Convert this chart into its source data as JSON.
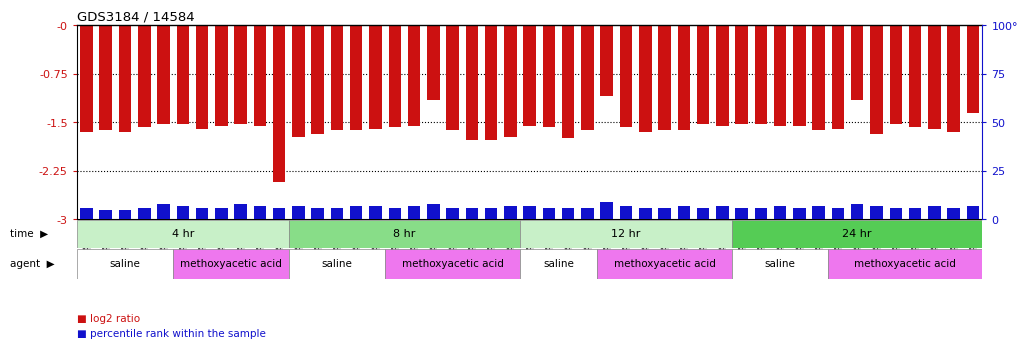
{
  "title": "GDS3184 / 14584",
  "samples": [
    "GSM253537",
    "GSM253539",
    "GSM253562",
    "GSM253564",
    "GSM253569",
    "GSM253533",
    "GSM253538",
    "GSM253540",
    "GSM253541",
    "GSM253542",
    "GSM253568",
    "GSM253530",
    "GSM253543",
    "GSM253544",
    "GSM253555",
    "GSM253556",
    "GSM253565",
    "GSM253534",
    "GSM253545",
    "GSM253546",
    "GSM253557",
    "GSM253558",
    "GSM253559",
    "GSM253531",
    "GSM253547",
    "GSM253548",
    "GSM253566",
    "GSM253570",
    "GSM253571",
    "GSM253535",
    "GSM253550",
    "GSM253560",
    "GSM253561",
    "GSM253563",
    "GSM253572",
    "GSM253532",
    "GSM253551",
    "GSM253552",
    "GSM253567",
    "GSM253573",
    "GSM253574",
    "GSM253536",
    "GSM253549",
    "GSM253553",
    "GSM253554",
    "GSM253575",
    "GSM253576"
  ],
  "log2_ratio": [
    -1.65,
    -1.62,
    -1.65,
    -1.58,
    -1.52,
    -1.52,
    -1.6,
    -1.55,
    -1.52,
    -1.55,
    -2.42,
    -1.72,
    -1.68,
    -1.62,
    -1.62,
    -1.6,
    -1.57,
    -1.55,
    -1.15,
    -1.62,
    -1.78,
    -1.78,
    -1.73,
    -1.55,
    -1.58,
    -1.75,
    -1.62,
    -1.1,
    -1.58,
    -1.65,
    -1.62,
    -1.62,
    -1.52,
    -1.55,
    -1.52,
    -1.52,
    -1.55,
    -1.55,
    -1.62,
    -1.6,
    -1.15,
    -1.68,
    -1.52,
    -1.58,
    -1.6,
    -1.65,
    -1.35
  ],
  "percentile": [
    6,
    5,
    5,
    6,
    8,
    7,
    6,
    6,
    8,
    7,
    6,
    7,
    6,
    6,
    7,
    7,
    6,
    7,
    8,
    6,
    6,
    6,
    7,
    7,
    6,
    6,
    6,
    9,
    7,
    6,
    6,
    7,
    6,
    7,
    6,
    6,
    7,
    6,
    7,
    6,
    8,
    7,
    6,
    6,
    7,
    6,
    7
  ],
  "time_groups": [
    {
      "label": "4 hr",
      "start": 0,
      "end": 11,
      "color": "#c8f0c8"
    },
    {
      "label": "8 hr",
      "start": 11,
      "end": 23,
      "color": "#88dd88"
    },
    {
      "label": "12 hr",
      "start": 23,
      "end": 34,
      "color": "#c8f0c8"
    },
    {
      "label": "24 hr",
      "start": 34,
      "end": 47,
      "color": "#55cc55"
    }
  ],
  "agent_groups": [
    {
      "label": "saline",
      "start": 0,
      "end": 5,
      "color": "#ffffff"
    },
    {
      "label": "methoxyacetic acid",
      "start": 5,
      "end": 11,
      "color": "#ee77ee"
    },
    {
      "label": "saline",
      "start": 11,
      "end": 16,
      "color": "#ffffff"
    },
    {
      "label": "methoxyacetic acid",
      "start": 16,
      "end": 23,
      "color": "#ee77ee"
    },
    {
      "label": "saline",
      "start": 23,
      "end": 27,
      "color": "#ffffff"
    },
    {
      "label": "methoxyacetic acid",
      "start": 27,
      "end": 34,
      "color": "#ee77ee"
    },
    {
      "label": "saline",
      "start": 34,
      "end": 39,
      "color": "#ffffff"
    },
    {
      "label": "methoxyacetic acid",
      "start": 39,
      "end": 47,
      "color": "#ee77ee"
    }
  ],
  "bar_color": "#cc1111",
  "percentile_color": "#1111cc",
  "left_tick_color": "#cc1111",
  "right_tick_color": "#1111cc",
  "yticks_left_vals": [
    0.0,
    -0.75,
    -1.5,
    -2.25,
    -3.0
  ],
  "yticks_left_labels": [
    "-0",
    "-0.75",
    "-1.5",
    "-2.25",
    "-3"
  ],
  "yticks_right_vals": [
    0,
    25,
    50,
    75,
    100
  ],
  "yticks_right_labels": [
    "0",
    "25",
    "50",
    "75",
    "100°"
  ]
}
